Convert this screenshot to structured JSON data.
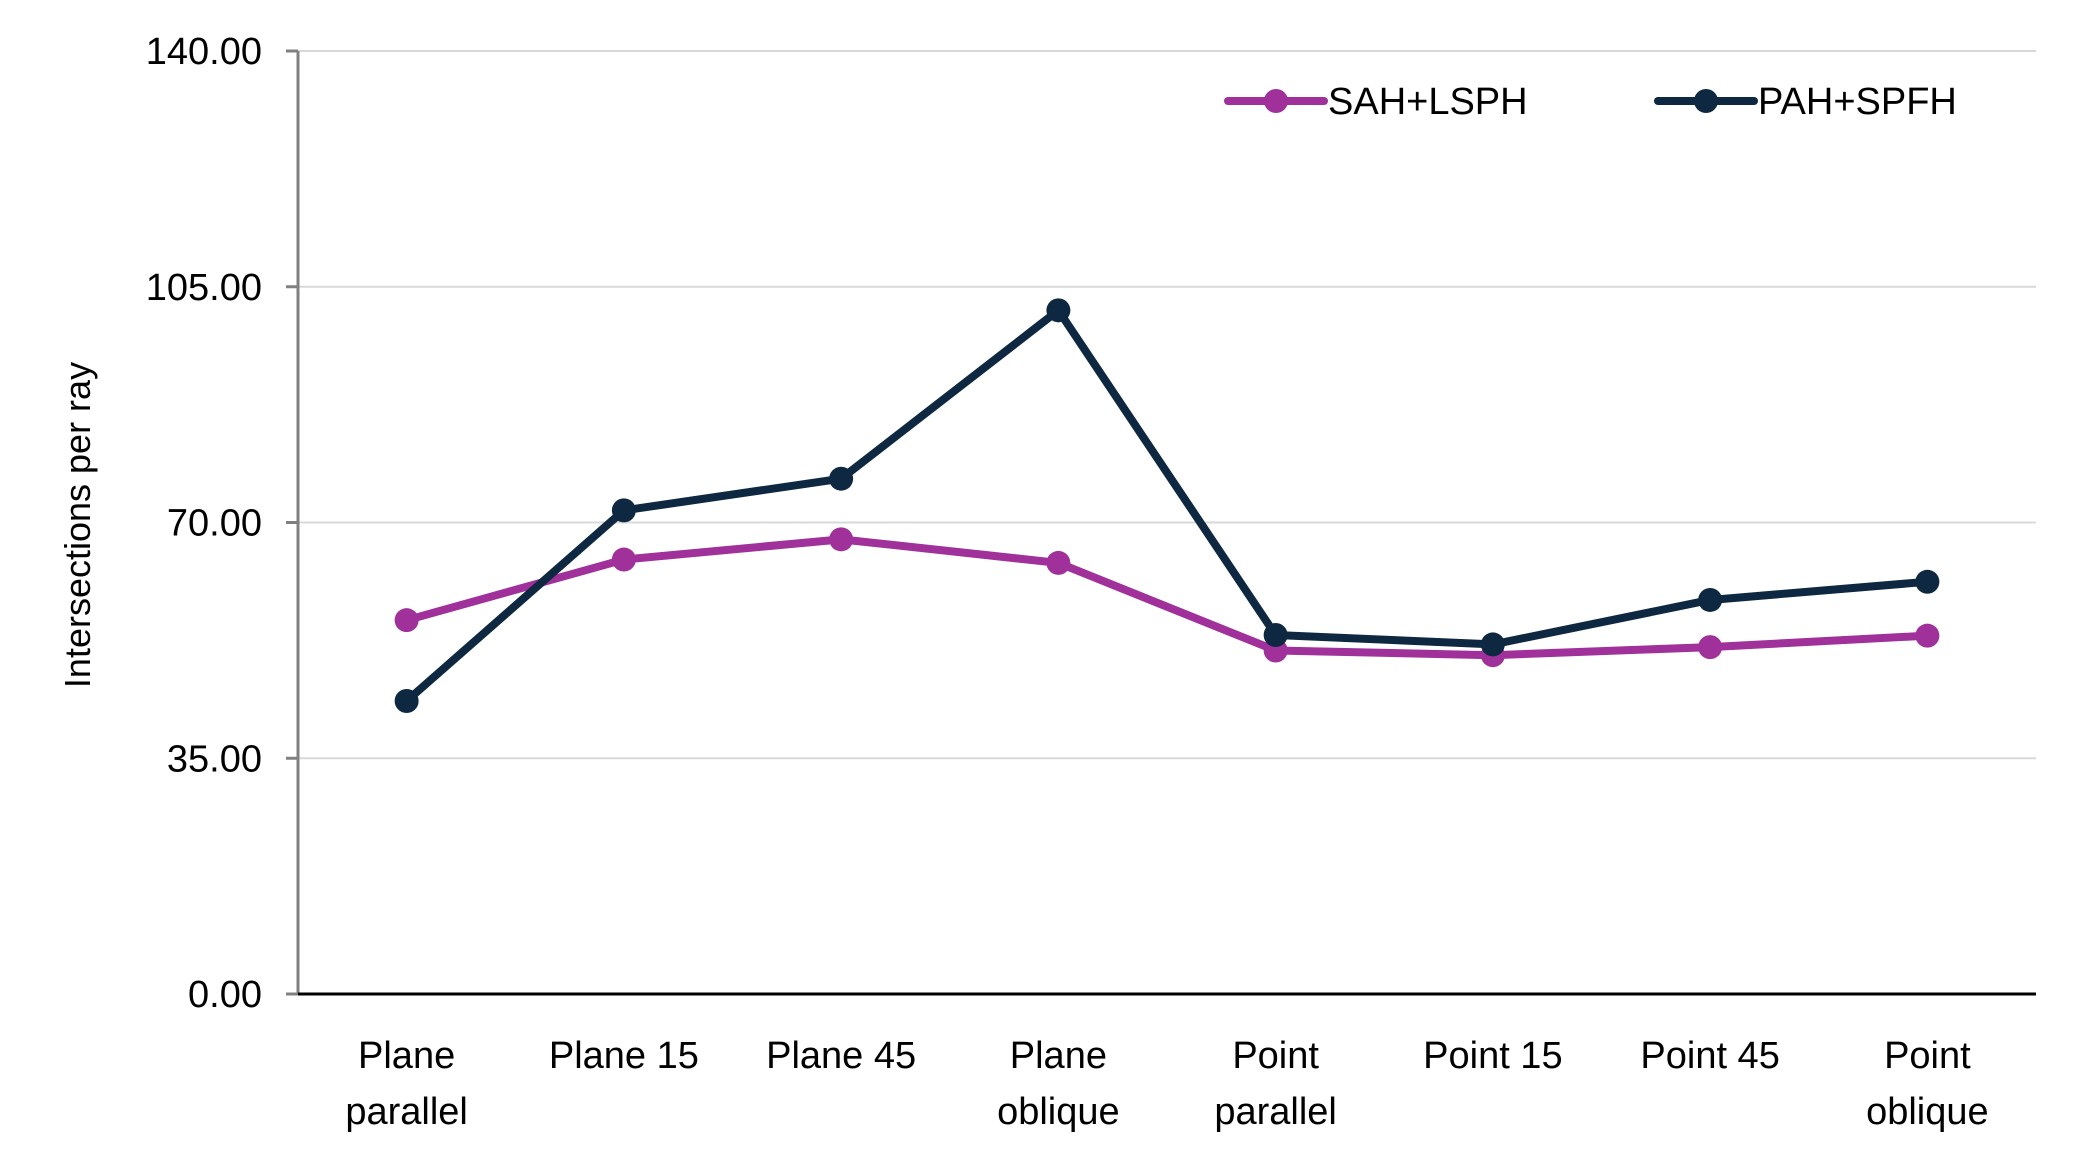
{
  "chart_data": {
    "type": "line",
    "ylabel": "Intersections per ray",
    "xlabel": "",
    "ylim": [
      0,
      140
    ],
    "yticks": [
      "0.00",
      "35.00",
      "70.00",
      "105.00",
      "140.00"
    ],
    "ytick_values": [
      0,
      35,
      70,
      105,
      140
    ],
    "grid": true,
    "legend_position": "top-right",
    "categories": [
      [
        "Plane",
        "parallel"
      ],
      [
        "Plane 15"
      ],
      [
        "Plane 45"
      ],
      [
        "Plane",
        "oblique"
      ],
      [
        "Point",
        "parallel"
      ],
      [
        "Point 15"
      ],
      [
        "Point 45"
      ],
      [
        "Point",
        "oblique"
      ]
    ],
    "series": [
      {
        "name": "SAH+LSPH",
        "color": "#A0309A",
        "values": [
          55.5,
          64.5,
          67.5,
          64.0,
          51.0,
          50.3,
          51.5,
          53.2
        ]
      },
      {
        "name": "PAH+SPFH",
        "color": "#0E2841",
        "values": [
          43.5,
          71.8,
          76.5,
          101.5,
          53.3,
          51.9,
          58.5,
          61.2
        ]
      }
    ]
  }
}
